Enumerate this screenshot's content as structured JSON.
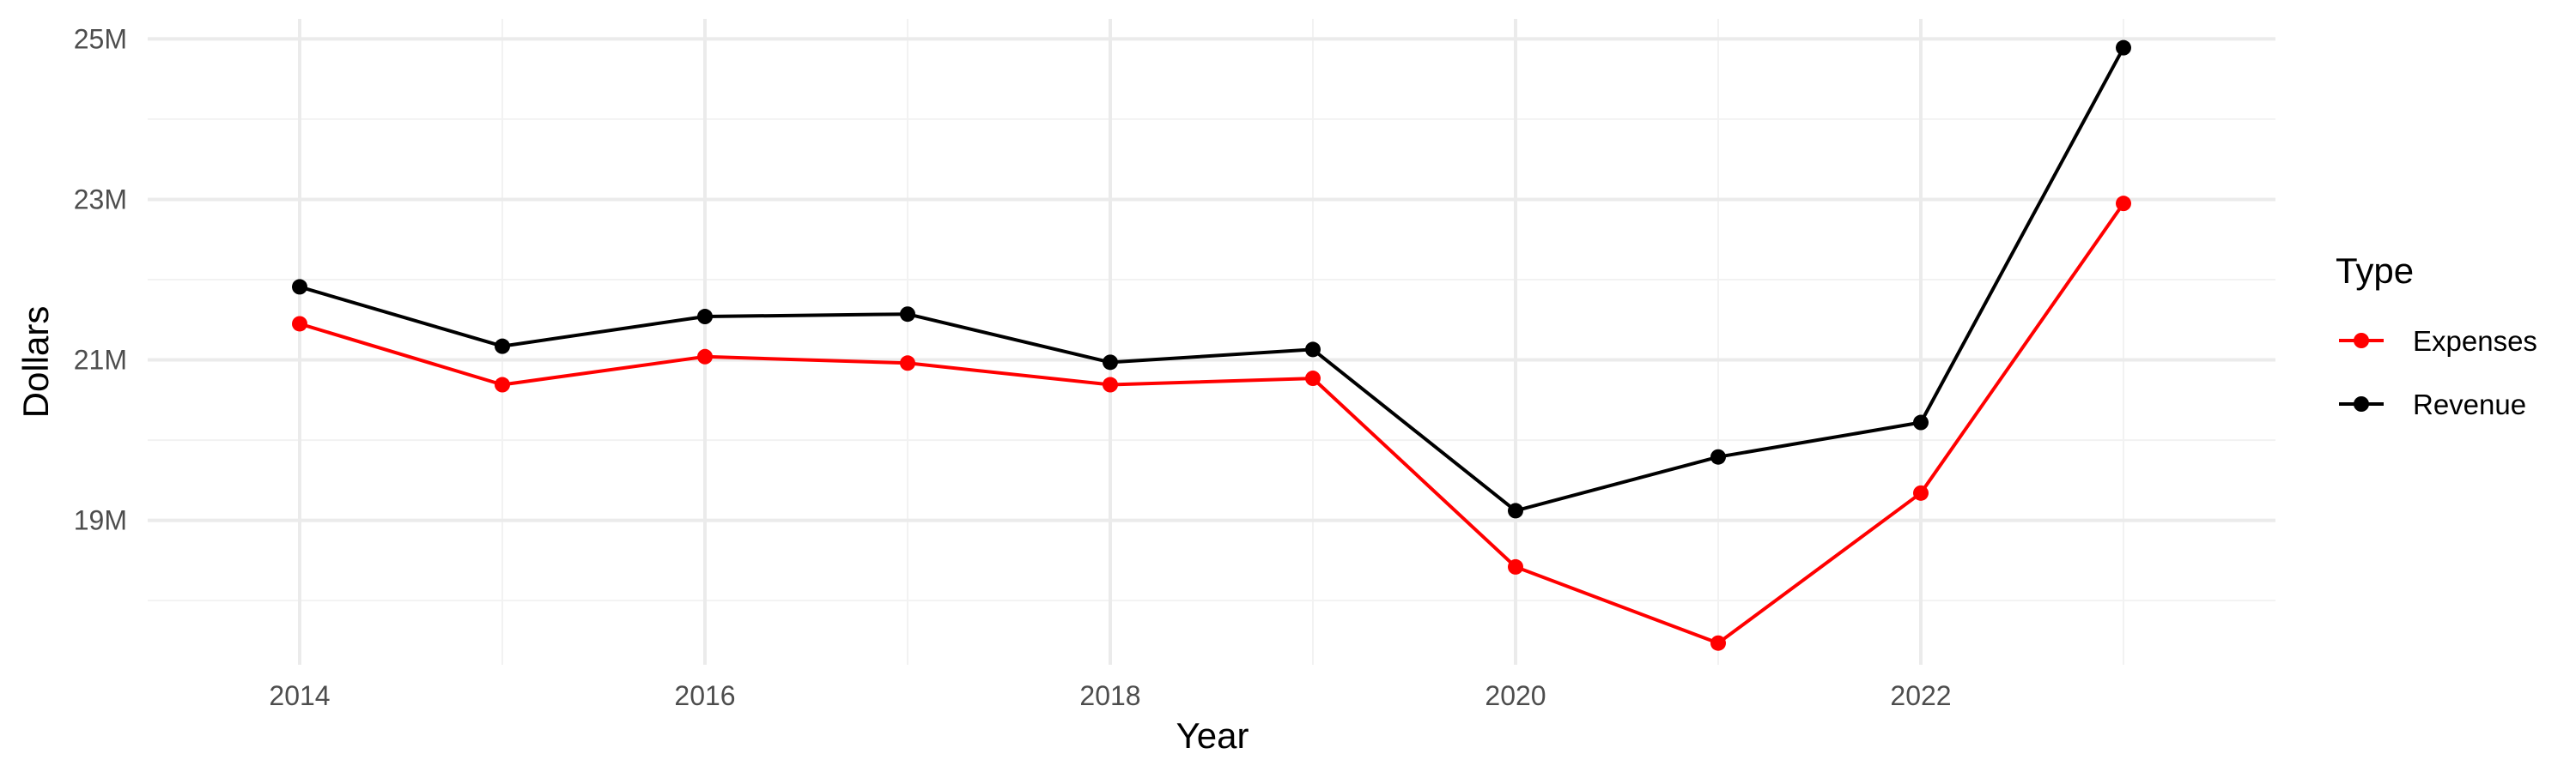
{
  "chart_data": {
    "type": "line",
    "title": "",
    "xlabel": "Year",
    "ylabel": "Dollars",
    "x": [
      2014,
      2015,
      2016,
      2017,
      2018,
      2019,
      2020,
      2021,
      2022,
      2023
    ],
    "xlim": [
      2013.25,
      2023.75
    ],
    "ylim": [
      17.2,
      25.25
    ],
    "x_ticks": [
      2014,
      2016,
      2018,
      2020,
      2022
    ],
    "x_tick_labels": [
      "2014",
      "2016",
      "2018",
      "2020",
      "2022"
    ],
    "y_ticks": [
      19,
      21,
      23,
      25
    ],
    "y_tick_labels": [
      "19M",
      "21M",
      "23M",
      "25M"
    ],
    "grid": true,
    "legend": {
      "title": "Type",
      "position": "right"
    },
    "series": [
      {
        "name": "Expenses",
        "color": "#ff0000",
        "values": [
          21.45,
          20.69,
          21.04,
          20.96,
          20.69,
          20.77,
          18.42,
          17.47,
          19.34,
          22.95
        ]
      },
      {
        "name": "Revenue",
        "color": "#000000",
        "values": [
          21.91,
          21.17,
          21.54,
          21.57,
          20.97,
          21.13,
          19.12,
          19.79,
          20.22,
          24.89
        ]
      }
    ]
  }
}
